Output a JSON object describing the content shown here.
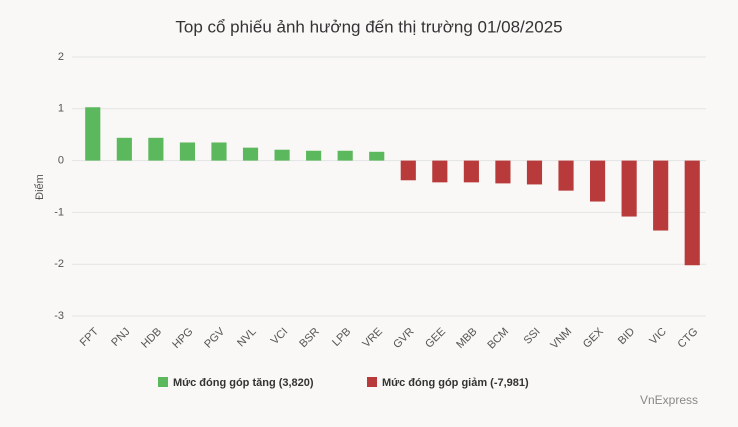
{
  "chart_data": {
    "type": "bar",
    "title": "Top cổ phiếu ảnh hưởng đến thị trường 01/08/2025",
    "y_label": "Điểm",
    "source": "VnExpress",
    "categories": [
      "FPT",
      "PNJ",
      "HDB",
      "HPG",
      "PGV",
      "NVL",
      "VCI",
      "BSR",
      "LPB",
      "VRE",
      "GVR",
      "GEE",
      "MBB",
      "BCM",
      "SSI",
      "VNM",
      "GEX",
      "BID",
      "VIC",
      "CTG"
    ],
    "series": [
      {
        "name": "Mức đóng góp tăng (3,820)",
        "color": "#5cb85c",
        "values": [
          1.03,
          0.44,
          0.44,
          0.35,
          0.35,
          0.25,
          0.21,
          0.19,
          0.19,
          0.17,
          null,
          null,
          null,
          null,
          null,
          null,
          null,
          null,
          null,
          null
        ]
      },
      {
        "name": "Mức đóng góp giảm (-7,981)",
        "color": "#b83a3a",
        "values": [
          null,
          null,
          null,
          null,
          null,
          null,
          null,
          null,
          null,
          null,
          -0.38,
          -0.42,
          -0.42,
          -0.44,
          -0.46,
          -0.58,
          -0.79,
          -1.08,
          -1.35,
          -2.02
        ]
      }
    ],
    "ylim": [
      -3,
      2
    ],
    "yticks": [
      -3,
      -2,
      -1,
      0,
      1,
      2
    ],
    "grid": true
  }
}
